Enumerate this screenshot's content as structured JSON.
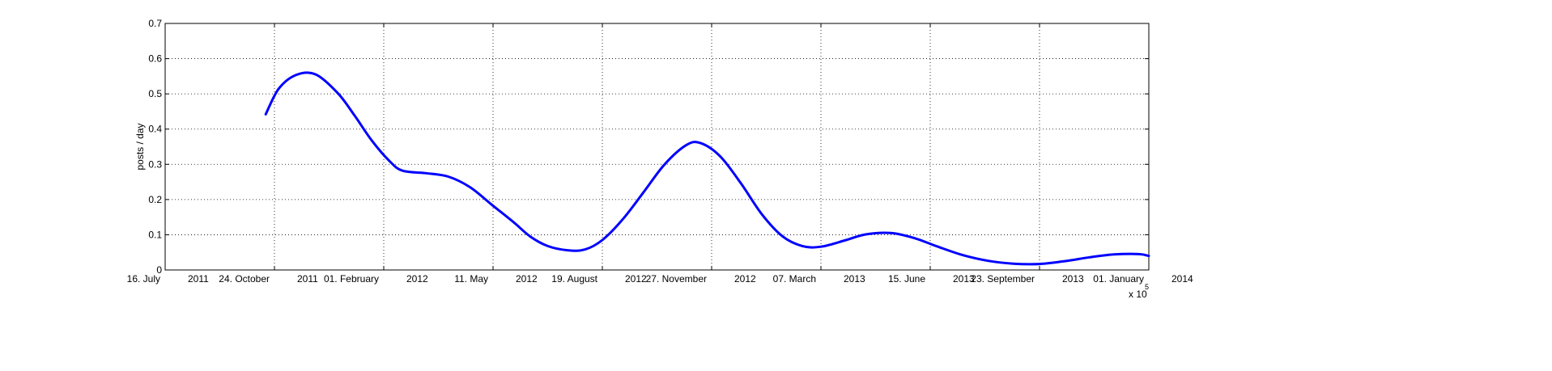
{
  "chart_data": {
    "type": "line",
    "title": "",
    "xlabel": "",
    "ylabel": "posts / day",
    "exponent_label": "x 10",
    "exponent_power": "5",
    "xlim": [
      "2011-07-16",
      "2014-01-01"
    ],
    "ylim": [
      0,
      0.7
    ],
    "grid": true,
    "x_ticks": [
      {
        "date": "2011-07-16",
        "day": "16. July",
        "year": "2011"
      },
      {
        "date": "2011-10-24",
        "day": "24. October",
        "year": "2011"
      },
      {
        "date": "2012-02-01",
        "day": "01. February",
        "year": "2012"
      },
      {
        "date": "2012-05-11",
        "day": "11. May",
        "year": "2012"
      },
      {
        "date": "2012-08-19",
        "day": "19. August",
        "year": "2012"
      },
      {
        "date": "2012-11-27",
        "day": "27. November",
        "year": "2012"
      },
      {
        "date": "2013-03-07",
        "day": "07. March",
        "year": "2013"
      },
      {
        "date": "2013-06-15",
        "day": "15. June",
        "year": "2013"
      },
      {
        "date": "2013-09-23",
        "day": "23. September",
        "year": "2013"
      },
      {
        "date": "2014-01-01",
        "day": "01. January",
        "year": "2014"
      }
    ],
    "y_ticks": [
      "0",
      "0.1",
      "0.2",
      "0.3",
      "0.4",
      "0.5",
      "0.6",
      "0.7"
    ],
    "series": [
      {
        "color": "#0000ff",
        "x": [
          "2011-10-16",
          "2011-10-28",
          "2011-11-13",
          "2011-12-01",
          "2011-12-21",
          "2012-01-05",
          "2012-01-21",
          "2012-02-06",
          "2012-02-18",
          "2012-03-10",
          "2012-03-31",
          "2012-04-20",
          "2012-05-10",
          "2012-05-30",
          "2012-06-14",
          "2012-06-30",
          "2012-07-18",
          "2012-08-03",
          "2012-08-19",
          "2012-09-07",
          "2012-09-26",
          "2012-10-15",
          "2012-11-04",
          "2012-11-17",
          "2012-12-05",
          "2012-12-24",
          "2013-01-12",
          "2013-01-31",
          "2013-02-18",
          "2013-03-07",
          "2013-03-30",
          "2013-04-17",
          "2013-05-10",
          "2013-06-01",
          "2013-06-22",
          "2013-07-15",
          "2013-08-07",
          "2013-08-30",
          "2013-09-23",
          "2013-10-16",
          "2013-11-08",
          "2013-11-30",
          "2013-12-23",
          "2014-01-01"
        ],
        "y": [
          0.442,
          0.515,
          0.554,
          0.555,
          0.502,
          0.44,
          0.368,
          0.31,
          0.282,
          0.275,
          0.265,
          0.235,
          0.185,
          0.135,
          0.095,
          0.068,
          0.056,
          0.058,
          0.085,
          0.145,
          0.222,
          0.3,
          0.355,
          0.36,
          0.322,
          0.245,
          0.158,
          0.095,
          0.068,
          0.066,
          0.085,
          0.101,
          0.105,
          0.09,
          0.066,
          0.042,
          0.026,
          0.018,
          0.017,
          0.025,
          0.036,
          0.044,
          0.045,
          0.04
        ]
      }
    ]
  }
}
